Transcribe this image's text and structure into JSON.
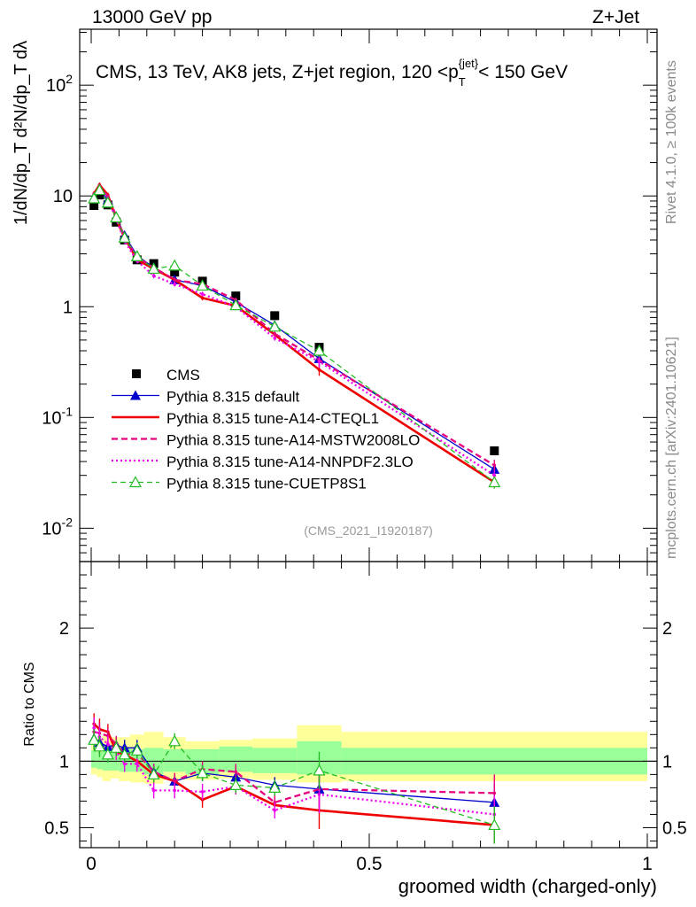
{
  "header": {
    "energy": "13000 GeV pp",
    "process": "Z+Jet"
  },
  "side": {
    "rivet": "Rivet 4.1.0, ≥ 100k events",
    "mcplots": "mcplots.cern.ch [arXiv:2401.10621]"
  },
  "colors": {
    "cms": "#000000",
    "default": "#0000cc",
    "cteq": "#ee0000",
    "mstw": "#e6007e",
    "nnpdf": "#ee00ee",
    "cuetp": "#22bb22",
    "band_inner": "#99ff99",
    "band_outer": "#ffff99"
  },
  "chart_data": {
    "type": "line",
    "title": "CMS, 13 TeV, AK8 jets, Z+jet region, 120 <p_T^{jet}< 150 GeV",
    "analysis_id": "(CMS_2021_I1920187)",
    "xlabel": "groomed width (charged-only)",
    "ylabel": "1/dN/dp_T  d²N/dp_T dλ",
    "ratio_ylabel": "Ratio to CMS",
    "xlim": [
      0,
      1
    ],
    "ylim": [
      0.005,
      320
    ],
    "ratio_ylim": [
      0.35,
      2.5
    ],
    "xticks": [
      "0",
      "0.5",
      "1"
    ],
    "yticks": [
      "10^{-2}",
      "10^{-1}",
      "1",
      "10",
      "10^{2}"
    ],
    "ratio_yticks": [
      "0.5",
      "1",
      "2"
    ],
    "x": [
      0.005,
      0.015,
      0.03,
      0.045,
      0.06,
      0.0825,
      0.1125,
      0.15,
      0.2,
      0.26,
      0.33,
      0.41,
      0.725
    ],
    "series": [
      {
        "name": "CMS",
        "style": "data",
        "values": [
          8.2,
          10.2,
          8.3,
          5.8,
          4.0,
          2.65,
          2.45,
          2.05,
          1.7,
          1.25,
          0.83,
          0.43,
          0.05
        ]
      },
      {
        "name": "Pythia 8.315 default",
        "style": "solid-triangle",
        "values": [
          9.6,
          11.6,
          9.2,
          6.5,
          4.4,
          2.9,
          2.25,
          1.75,
          1.55,
          1.1,
          0.68,
          0.34,
          0.034
        ]
      },
      {
        "name": "Pythia 8.315 tune-A14-CTEQL1",
        "style": "thick-solid",
        "values": [
          10.5,
          12.6,
          10.2,
          6.2,
          4.2,
          2.65,
          2.2,
          1.75,
          1.2,
          1.02,
          0.56,
          0.27,
          0.026
        ]
      },
      {
        "name": "Pythia 8.315 tune-A14-MSTW2008LO",
        "style": "dashed",
        "values": [
          10.0,
          12.3,
          9.9,
          6.6,
          4.2,
          2.8,
          2.25,
          1.75,
          1.6,
          1.15,
          0.57,
          0.33,
          0.037
        ]
      },
      {
        "name": "Pythia 8.315 tune-A14-NNPDF2.3LO",
        "style": "dotted",
        "values": [
          10.3,
          12.0,
          9.4,
          6.2,
          3.9,
          2.6,
          1.9,
          1.6,
          1.3,
          1.0,
          0.52,
          0.32,
          0.03
        ]
      },
      {
        "name": "Pythia 8.315 tune-CUETP8S1",
        "style": "dashed-open-triangle",
        "values": [
          9.5,
          11.3,
          8.7,
          6.4,
          4.2,
          2.85,
          2.2,
          2.35,
          1.55,
          1.03,
          0.66,
          0.4,
          0.026
        ]
      }
    ],
    "ratio": {
      "x": [
        0.005,
        0.015,
        0.03,
        0.045,
        0.06,
        0.0825,
        0.1125,
        0.15,
        0.2,
        0.26,
        0.33,
        0.41,
        0.725
      ],
      "series": [
        {
          "name": "Pythia 8.315 default",
          "values": [
            1.17,
            1.14,
            1.11,
            1.12,
            1.1,
            1.1,
            0.92,
            0.85,
            0.91,
            0.88,
            0.82,
            0.79,
            0.69
          ]
        },
        {
          "name": "Pythia 8.315 tune-A14-CTEQL1",
          "values": [
            1.28,
            1.24,
            1.22,
            1.07,
            1.05,
            1.0,
            0.9,
            0.85,
            0.71,
            0.81,
            0.67,
            0.63,
            0.52
          ]
        },
        {
          "name": "Pythia 8.315 tune-A14-MSTW2008LO",
          "values": [
            1.22,
            1.21,
            1.19,
            1.13,
            1.05,
            1.06,
            0.92,
            0.85,
            0.94,
            0.92,
            0.69,
            0.79,
            0.76
          ]
        },
        {
          "name": "Pythia 8.315 tune-A14-NNPDF2.3LO",
          "values": [
            1.25,
            1.18,
            1.13,
            1.07,
            0.98,
            0.98,
            0.78,
            0.78,
            0.77,
            0.81,
            0.63,
            0.75,
            0.6
          ]
        },
        {
          "name": "Pythia 8.315 tune-CUETP8S1",
          "values": [
            1.16,
            1.11,
            1.05,
            1.1,
            1.05,
            1.08,
            0.9,
            1.15,
            0.91,
            0.82,
            0.8,
            0.93,
            0.52
          ]
        }
      ],
      "band_edges": [
        0,
        0.01,
        0.02,
        0.035,
        0.05,
        0.07,
        0.095,
        0.13,
        0.17,
        0.23,
        0.29,
        0.37,
        0.45,
        1.0
      ],
      "band_inner": [
        [
          0.95,
          1.08
        ],
        [
          0.94,
          1.07
        ],
        [
          0.93,
          1.1
        ],
        [
          0.93,
          1.1
        ],
        [
          0.92,
          1.1
        ],
        [
          0.92,
          1.09
        ],
        [
          0.9,
          1.1
        ],
        [
          0.92,
          1.09
        ],
        [
          0.9,
          1.09
        ],
        [
          0.92,
          1.11
        ],
        [
          0.91,
          1.1
        ],
        [
          0.9,
          1.15
        ],
        [
          0.9,
          1.1
        ]
      ],
      "band_outer": [
        [
          0.9,
          1.12
        ],
        [
          0.88,
          1.17
        ],
        [
          0.85,
          1.19
        ],
        [
          0.87,
          1.18
        ],
        [
          0.85,
          1.18
        ],
        [
          0.84,
          1.2
        ],
        [
          0.83,
          1.22
        ],
        [
          0.86,
          1.18
        ],
        [
          0.86,
          1.15
        ],
        [
          0.87,
          1.16
        ],
        [
          0.86,
          1.17
        ],
        [
          0.84,
          1.27
        ],
        [
          0.85,
          1.22
        ]
      ]
    }
  }
}
